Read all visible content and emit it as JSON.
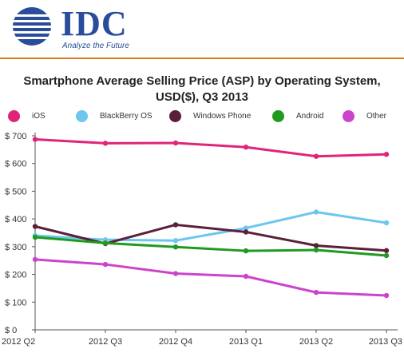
{
  "header": {
    "logo_text": "IDC",
    "tagline": "Analyze the Future"
  },
  "chart_data": {
    "type": "line",
    "title_line1": "Smartphone Average Selling Price (ASP) by Operating System,",
    "title_line2": "USD($), Q3 2013",
    "categories": [
      "2012 Q2",
      "2012 Q3",
      "2012 Q4",
      "2013 Q1",
      "2013 Q2",
      "2013 Q3"
    ],
    "y_ticks": [
      "$ 0",
      "$ 100",
      "$ 200",
      "$ 300",
      "$ 400",
      "$ 500",
      "$ 600",
      "$ 700"
    ],
    "ylim": [
      0,
      700
    ],
    "grid": false,
    "legend_position": "top",
    "series": [
      {
        "name": "iOS",
        "color": "#e0247a",
        "values": [
          687,
          673,
          674,
          659,
          626,
          633
        ]
      },
      {
        "name": "BlackBerry OS",
        "color": "#6cc6ee",
        "values": [
          340,
          325,
          322,
          367,
          425,
          386
        ]
      },
      {
        "name": "Windows Phone",
        "color": "#5a1f3a",
        "values": [
          373,
          311,
          379,
          353,
          304,
          286
        ]
      },
      {
        "name": "Android",
        "color": "#1f9a1f",
        "values": [
          334,
          313,
          299,
          285,
          288,
          268
        ]
      },
      {
        "name": "Other",
        "color": "#cc44cc",
        "values": [
          254,
          236,
          203,
          193,
          135,
          124
        ]
      }
    ]
  }
}
